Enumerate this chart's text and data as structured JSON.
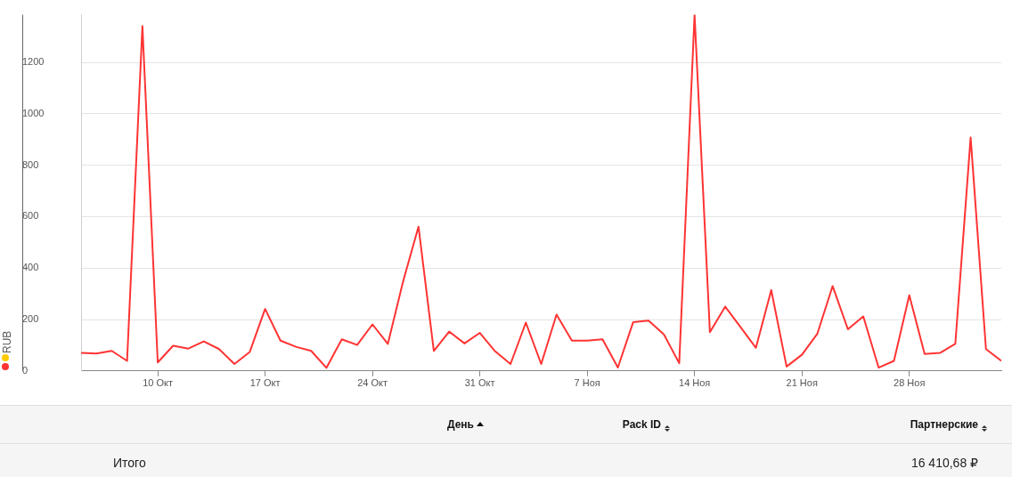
{
  "chart_data": {
    "type": "line",
    "legend": "left",
    "grid": "y",
    "marker": "none",
    "line_style": "solid",
    "x": [
      "--10-05",
      "--10-06",
      "--10-07",
      "--10-08",
      "--10-09",
      "--10-10",
      "--10-11",
      "--10-12",
      "--10-13",
      "--10-14",
      "--10-15",
      "--10-16",
      "--10-17",
      "--10-18",
      "--10-19",
      "--10-20",
      "--10-21",
      "--10-22",
      "--10-23",
      "--10-24",
      "--10-25",
      "--10-26",
      "--10-27",
      "--10-28",
      "--10-29",
      "--10-30",
      "--10-31",
      "--11-01",
      "--11-02",
      "--11-03",
      "--11-04",
      "--11-05",
      "--11-06",
      "--11-07",
      "--11-08",
      "--11-09",
      "--11-10",
      "--11-11",
      "--11-12",
      "--11-13",
      "--11-14",
      "--11-15",
      "--11-16",
      "--11-17",
      "--11-18",
      "--11-19",
      "--11-20",
      "--11-21",
      "--11-22",
      "--11-23",
      "--11-24",
      "--11-25",
      "--11-26",
      "--11-27",
      "--11-28",
      "--11-29",
      "--11-30",
      "--12-01",
      "--12-02",
      "--12-03",
      "--12-04"
    ],
    "series": [
      {
        "name": "RUB",
        "color": "#ff3333",
        "values": [
          70,
          68,
          78,
          39,
          1341,
          33,
          98,
          87,
          115,
          85,
          27,
          74,
          241,
          118,
          94,
          78,
          12,
          123,
          101,
          181,
          105,
          349,
          561,
          78,
          153,
          107,
          148,
          76,
          27,
          188,
          27,
          219,
          118,
          118,
          123,
          13,
          190,
          196,
          142,
          30,
          1385,
          151,
          250,
          170,
          90,
          314,
          17,
          63,
          144,
          330,
          162,
          212,
          13,
          39,
          294,
          66,
          70,
          105,
          908,
          85,
          39
        ]
      }
    ],
    "xlim": [
      "--10-05",
      "--12-04"
    ],
    "xticks": [
      {
        "value": "--10-10",
        "label": "10 Окт"
      },
      {
        "value": "--10-17",
        "label": "17 Окт"
      },
      {
        "value": "--10-24",
        "label": "24 Окт"
      },
      {
        "value": "--10-31",
        "label": "31 Окт"
      },
      {
        "value": "--11-07",
        "label": "7 Ноя"
      },
      {
        "value": "--11-14",
        "label": "14 Ноя"
      },
      {
        "value": "--11-21",
        "label": "21 Ноя"
      },
      {
        "value": "--11-28",
        "label": "28 Ноя"
      }
    ],
    "ylim": [
      0,
      1385
    ],
    "yticks": [
      0,
      200,
      400,
      600,
      800,
      1000,
      1200
    ],
    "annotations": [
      "День",
      "Pack ID",
      "Партнерские",
      "Итого",
      "16 410,68 ₽"
    ]
  }
}
